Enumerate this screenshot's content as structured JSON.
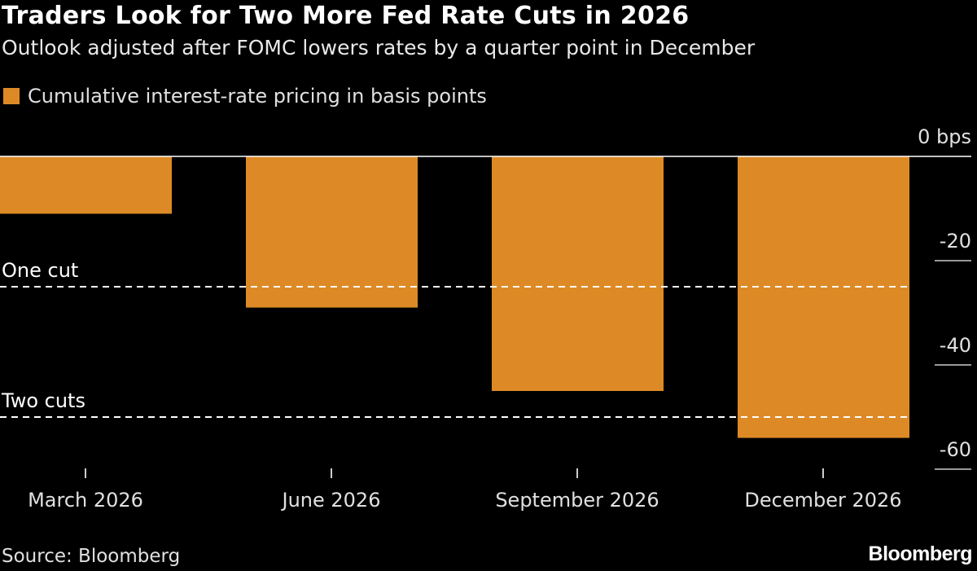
{
  "chart_data": {
    "type": "bar",
    "title": "Traders Look for Two More Fed Rate Cuts in 2026",
    "subtitle": "Outlook adjusted after FOMC lowers rates by a quarter point in December",
    "legend": [
      "Cumulative interest-rate pricing in basis points"
    ],
    "legend_placement": "top-left",
    "categories": [
      "March 2026",
      "June 2026",
      "September 2026",
      "December 2026"
    ],
    "values": [
      -11,
      -29,
      -45,
      -54
    ],
    "ylim": [
      -64,
      0
    ],
    "yticks": [
      0,
      -20,
      -40,
      -60
    ],
    "ytick_labels": [
      "0 bps",
      "-20",
      "-40",
      "-60"
    ],
    "y_axis_side": "right",
    "reference_lines": [
      {
        "label": "One cut",
        "value": -25
      },
      {
        "label": "Two cuts",
        "value": -50
      }
    ],
    "grid": false,
    "bar_color": "#dd8a26"
  },
  "footer": {
    "source": "Source: Bloomberg",
    "logo": "Bloomberg"
  }
}
